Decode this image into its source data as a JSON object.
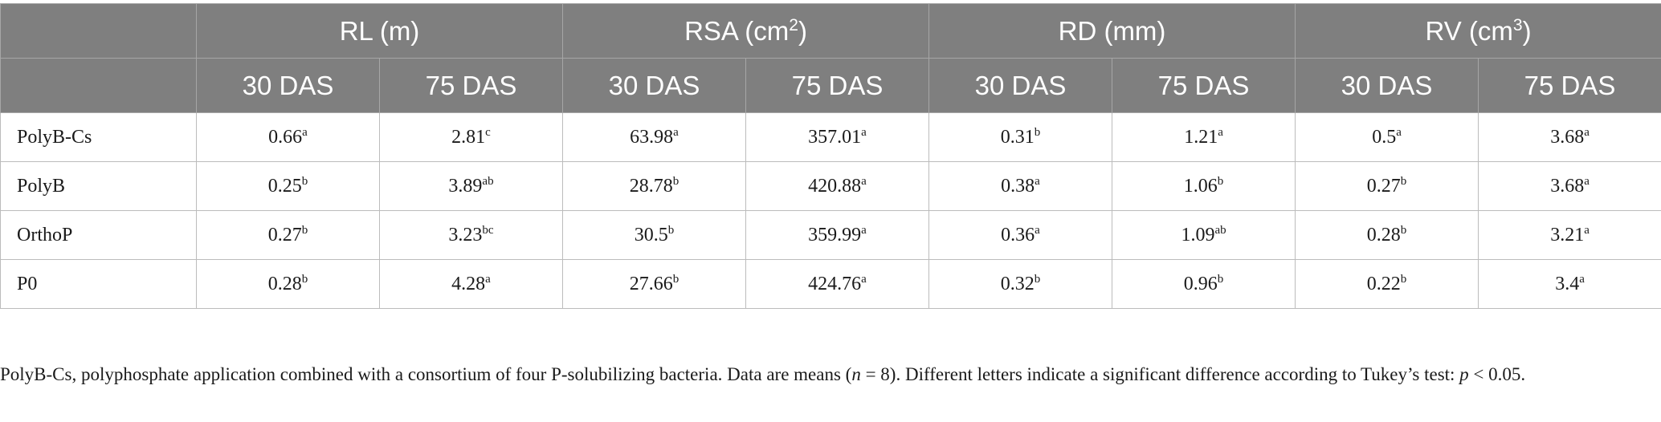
{
  "header": {
    "groups": [
      {
        "label": "RL (m)",
        "sup": "",
        "suffix": ""
      },
      {
        "label": "RSA (cm",
        "sup": "2",
        "suffix": ")"
      },
      {
        "label": "RD (mm)",
        "sup": "",
        "suffix": ""
      },
      {
        "label": "RV (cm",
        "sup": "3",
        "suffix": ")"
      }
    ],
    "sub": [
      "30 DAS",
      "75 DAS",
      "30 DAS",
      "75 DAS",
      "30 DAS",
      "75 DAS",
      "30 DAS",
      "75 DAS"
    ]
  },
  "rows": [
    {
      "label": "PolyB-Cs",
      "cells": [
        {
          "v": "0.66",
          "s": "a"
        },
        {
          "v": "2.81",
          "s": "c"
        },
        {
          "v": "63.98",
          "s": "a"
        },
        {
          "v": "357.01",
          "s": "a"
        },
        {
          "v": "0.31",
          "s": "b"
        },
        {
          "v": "1.21",
          "s": "a"
        },
        {
          "v": "0.5",
          "s": "a"
        },
        {
          "v": "3.68",
          "s": "a"
        }
      ]
    },
    {
      "label": "PolyB",
      "cells": [
        {
          "v": "0.25",
          "s": "b"
        },
        {
          "v": "3.89",
          "s": "ab"
        },
        {
          "v": "28.78",
          "s": "b"
        },
        {
          "v": "420.88",
          "s": "a"
        },
        {
          "v": "0.38",
          "s": "a"
        },
        {
          "v": "1.06",
          "s": "b"
        },
        {
          "v": "0.27",
          "s": "b"
        },
        {
          "v": "3.68",
          "s": "a"
        }
      ]
    },
    {
      "label": "OrthoP",
      "cells": [
        {
          "v": "0.27",
          "s": "b"
        },
        {
          "v": "3.23",
          "s": "bc"
        },
        {
          "v": "30.5",
          "s": "b"
        },
        {
          "v": "359.99",
          "s": "a"
        },
        {
          "v": "0.36",
          "s": "a"
        },
        {
          "v": "1.09",
          "s": "ab"
        },
        {
          "v": "0.28",
          "s": "b"
        },
        {
          "v": "3.21",
          "s": "a"
        }
      ]
    },
    {
      "label": "P0",
      "cells": [
        {
          "v": "0.28",
          "s": "b"
        },
        {
          "v": "4.28",
          "s": "a"
        },
        {
          "v": "27.66",
          "s": "b"
        },
        {
          "v": "424.76",
          "s": "a"
        },
        {
          "v": "0.32",
          "s": "b"
        },
        {
          "v": "0.96",
          "s": "b"
        },
        {
          "v": "0.22",
          "s": "b"
        },
        {
          "v": "3.4",
          "s": "a"
        }
      ]
    }
  ],
  "footnote": {
    "part1": "PolyB-Cs, polyphosphate application combined with a consortium of four P-solubilizing bacteria. Data are means (",
    "n_symbol": "n",
    "part2": " = 8). Different letters indicate a significant difference according to Tukey’s test: ",
    "p_symbol": "p",
    "part3": " < 0.05."
  }
}
